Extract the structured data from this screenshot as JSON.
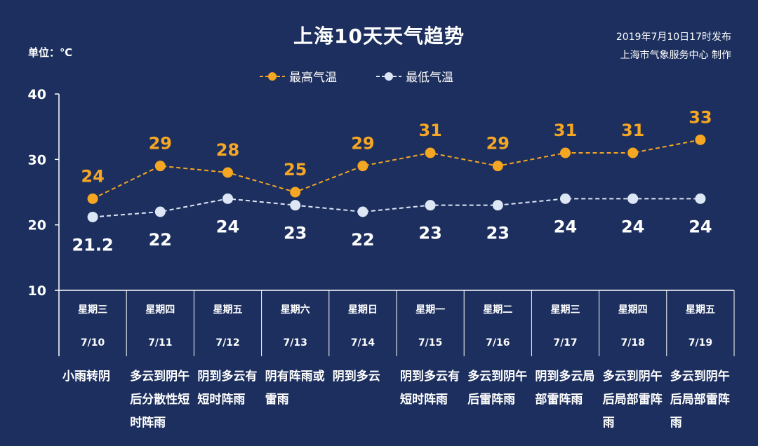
{
  "title": "上海10天天气趋势",
  "unit_label": "单位：℃",
  "issued_line1": "2019年7月10日17时发布",
  "issued_line2": "上海市气象服务中心  制作",
  "colors": {
    "background": "#1c2f5e",
    "high": "#f5a623",
    "low": "#dde6f5",
    "axis": "#ffffff"
  },
  "chart_data": {
    "type": "line",
    "ylim": [
      10,
      40
    ],
    "yticks": [
      "10",
      "20",
      "30",
      "40"
    ],
    "grid": false,
    "legend_position": "top-center",
    "categories": [
      {
        "weekday": "星期三",
        "date": "7/10",
        "desc": "小雨转阴"
      },
      {
        "weekday": "星期四",
        "date": "7/11",
        "desc": "多云到阴午后分散性短时阵雨"
      },
      {
        "weekday": "星期五",
        "date": "7/12",
        "desc": "阴到多云有短时阵雨"
      },
      {
        "weekday": "星期六",
        "date": "7/13",
        "desc": "阴有阵雨或雷雨"
      },
      {
        "weekday": "星期日",
        "date": "7/14",
        "desc": "阴到多云"
      },
      {
        "weekday": "星期一",
        "date": "7/15",
        "desc": "阴到多云有短时阵雨"
      },
      {
        "weekday": "星期二",
        "date": "7/16",
        "desc": "多云到阴午后雷阵雨"
      },
      {
        "weekday": "星期三",
        "date": "7/17",
        "desc": "阴到多云局部雷阵雨"
      },
      {
        "weekday": "星期四",
        "date": "7/18",
        "desc": "多云到阴午后局部雷阵雨"
      },
      {
        "weekday": "星期五",
        "date": "7/19",
        "desc": "多云到阴午后局部雷阵雨"
      }
    ],
    "series": [
      {
        "name": "最高气温",
        "values": [
          24,
          29,
          28,
          25,
          29,
          31,
          29,
          31,
          31,
          33
        ],
        "labels": [
          "24",
          "29",
          "28",
          "25",
          "29",
          "31",
          "29",
          "31",
          "31",
          "33"
        ]
      },
      {
        "name": "最低气温",
        "values": [
          21.2,
          22,
          24,
          23,
          22,
          23,
          23,
          24,
          24,
          24
        ],
        "labels": [
          "21.2",
          "22",
          "24",
          "23",
          "22",
          "23",
          "23",
          "24",
          "24",
          "24"
        ]
      }
    ]
  }
}
